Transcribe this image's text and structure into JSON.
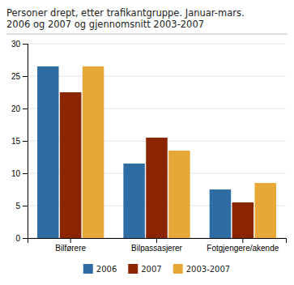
{
  "chart_data": {
    "type": "bar",
    "title": "Personer drept, etter trafikantgruppe. Januar-mars.\n2006 og 2007 og gjennomsnitt 2003-2007",
    "categories": [
      "Bilførere",
      "Bilpassasjerer",
      "Fotgjengere/akende"
    ],
    "series": [
      {
        "name": "2006",
        "color": "#2E6DA4",
        "values": [
          26.5,
          11.5,
          7.5
        ]
      },
      {
        "name": "2007",
        "color": "#8B2500",
        "values": [
          22.5,
          15.5,
          5.5
        ]
      },
      {
        "name": "2003-2007",
        "color": "#E8A838",
        "values": [
          26.5,
          13.5,
          8.5
        ]
      }
    ],
    "ylim": [
      0,
      30
    ],
    "yticks": [
      0,
      5,
      10,
      15,
      20,
      25,
      30
    ],
    "grid": true,
    "legend": "bottom"
  }
}
